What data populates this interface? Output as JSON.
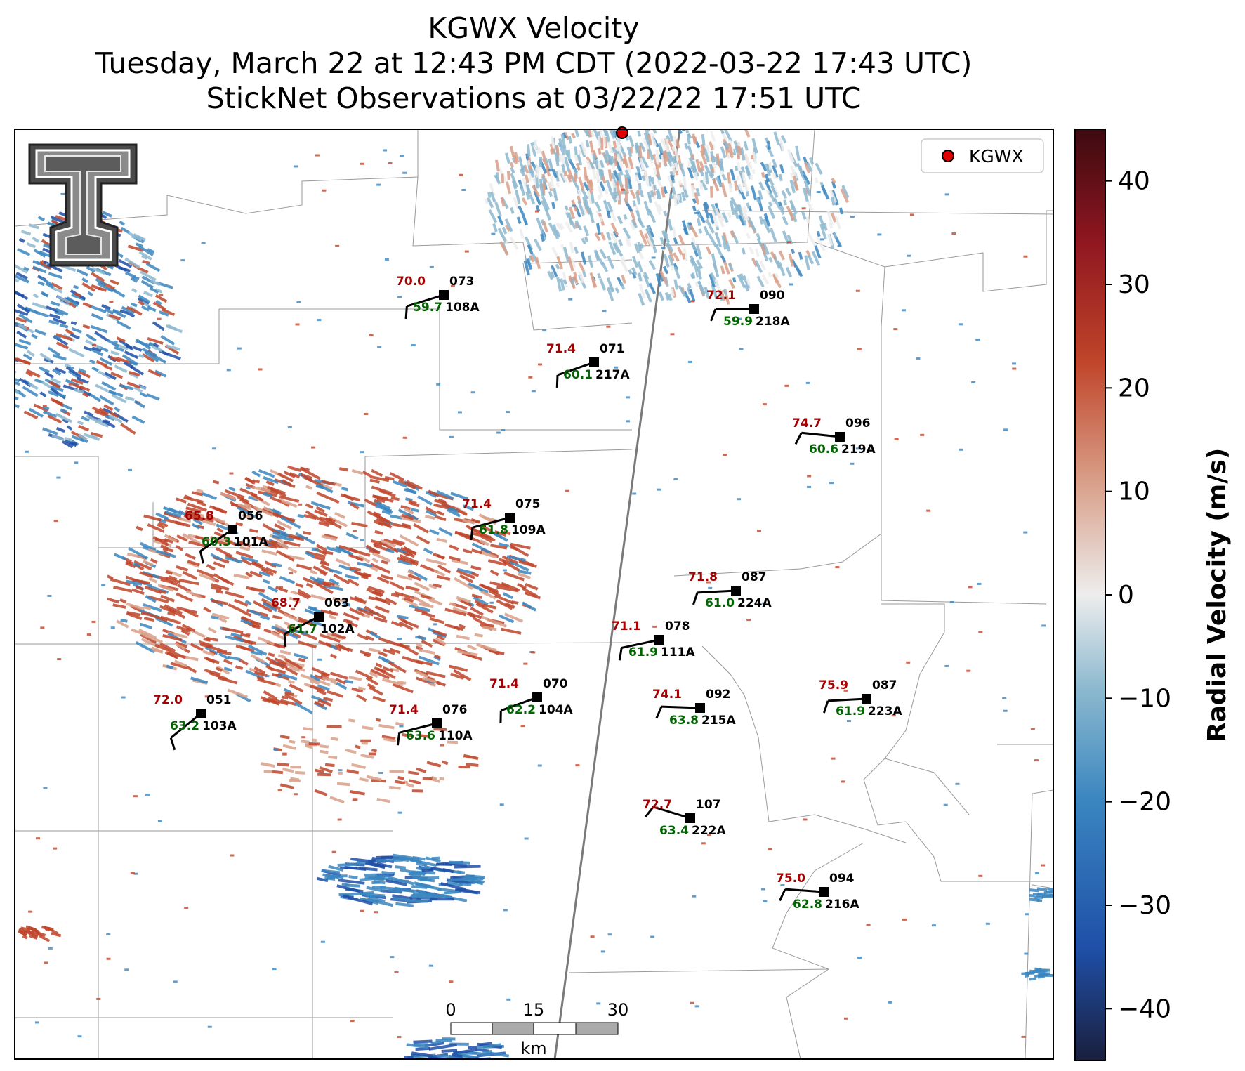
{
  "title": {
    "line1": "KGWX Velocity",
    "line2": "Tuesday, March 22 at 12:43 PM CDT (2022-03-22 17:43 UTC)",
    "line3": "StickNet Observations at 03/22/22 17:51 UTC"
  },
  "legend": {
    "label": "KGWX",
    "marker_color": "#e00000"
  },
  "colorbar": {
    "label": "Radial Velocity (m/s)",
    "range": [
      -45,
      45
    ],
    "ticks": [
      {
        "value": 40,
        "text": "40"
      },
      {
        "value": 30,
        "text": "30"
      },
      {
        "value": 20,
        "text": "20"
      },
      {
        "value": 10,
        "text": "10"
      },
      {
        "value": 0,
        "text": "0"
      },
      {
        "value": -10,
        "text": "−10"
      },
      {
        "value": -20,
        "text": "−20"
      },
      {
        "value": -30,
        "text": "−30"
      },
      {
        "value": -40,
        "text": "−40"
      }
    ],
    "colors": [
      "#1a1f3d",
      "#1f4fa8",
      "#3a86c0",
      "#8db9cf",
      "#ededed",
      "#d9a08a",
      "#c0452a",
      "#8f1620",
      "#3d0a10"
    ]
  },
  "scale_bar": {
    "labels": [
      "0",
      "15",
      "30"
    ],
    "unit": "km"
  },
  "logo": {
    "text": "T"
  },
  "stations": [
    {
      "id": "108A",
      "temp": "70.0",
      "dew": "59.7",
      "dir": "073"
    },
    {
      "id": "218A",
      "temp": "72.1",
      "dew": "59.9",
      "dir": "090"
    },
    {
      "id": "217A",
      "temp": "71.4",
      "dew": "60.1",
      "dir": "071"
    },
    {
      "id": "219A",
      "temp": "74.7",
      "dew": "60.6",
      "dir": "096"
    },
    {
      "id": "101A",
      "temp": "65.8",
      "dew": "60.3",
      "dir": "056"
    },
    {
      "id": "109A",
      "temp": "71.4",
      "dew": "61.8",
      "dir": "075"
    },
    {
      "id": "224A",
      "temp": "71.8",
      "dew": "61.0",
      "dir": "087"
    },
    {
      "id": "102A",
      "temp": "68.7",
      "dew": "61.7",
      "dir": "063"
    },
    {
      "id": "111A",
      "temp": "71.1",
      "dew": "61.9",
      "dir": "078"
    },
    {
      "id": "104A",
      "temp": "71.4",
      "dew": "62.2",
      "dir": "070"
    },
    {
      "id": "215A",
      "temp": "74.1",
      "dew": "63.8",
      "dir": "092"
    },
    {
      "id": "223A",
      "temp": "75.9",
      "dew": "61.9",
      "dir": "087"
    },
    {
      "id": "103A",
      "temp": "72.0",
      "dew": "63.2",
      "dir": "051"
    },
    {
      "id": "110A",
      "temp": "71.4",
      "dew": "63.6",
      "dir": "076"
    },
    {
      "id": "222A",
      "temp": "72.7",
      "dew": "63.4",
      "dir": "107"
    },
    {
      "id": "216A",
      "temp": "75.0",
      "dew": "62.8",
      "dir": "094"
    }
  ]
}
